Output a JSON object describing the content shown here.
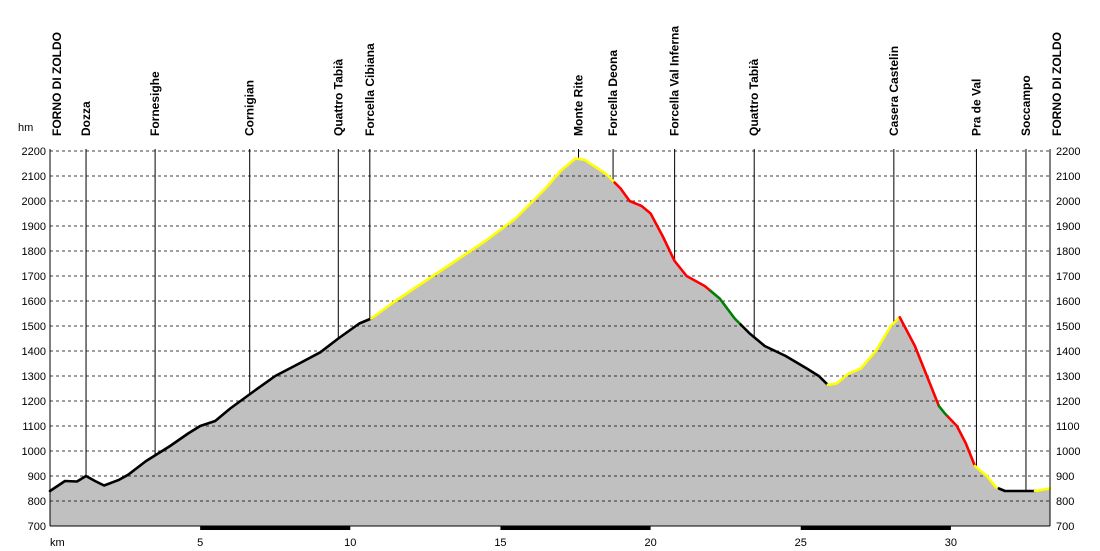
{
  "chart_data": {
    "type": "area",
    "title": "",
    "xlabel": "km",
    "ylabel": "hm",
    "xlim": [
      0,
      33.3
    ],
    "ylim": [
      700,
      2200
    ],
    "y_ticks": [
      700,
      800,
      900,
      1000,
      1100,
      1200,
      1300,
      1400,
      1500,
      1600,
      1700,
      1800,
      1900,
      2000,
      2100,
      2200
    ],
    "x_ticks": [
      5,
      10,
      15,
      20,
      25,
      30
    ],
    "y_grid": true,
    "colors": {
      "fill": "#c0c0c0",
      "grid": "#000000",
      "black": "#000000",
      "yellow": "#ffff00",
      "red": "#ff0000",
      "green": "#008000"
    },
    "profile": [
      [
        0.0,
        840
      ],
      [
        0.5,
        880
      ],
      [
        0.9,
        878
      ],
      [
        1.2,
        900
      ],
      [
        1.5,
        880
      ],
      [
        1.8,
        862
      ],
      [
        2.3,
        885
      ],
      [
        2.6,
        905
      ],
      [
        3.2,
        960
      ],
      [
        4.0,
        1020
      ],
      [
        4.6,
        1070
      ],
      [
        5.0,
        1100
      ],
      [
        5.5,
        1120
      ],
      [
        6.0,
        1170
      ],
      [
        6.8,
        1240
      ],
      [
        7.5,
        1300
      ],
      [
        8.3,
        1350
      ],
      [
        9.0,
        1395
      ],
      [
        9.6,
        1450
      ],
      [
        10.3,
        1510
      ],
      [
        10.7,
        1530
      ],
      [
        11.5,
        1600
      ],
      [
        12.5,
        1680
      ],
      [
        13.5,
        1760
      ],
      [
        14.5,
        1840
      ],
      [
        15.5,
        1930
      ],
      [
        16.5,
        2050
      ],
      [
        17.0,
        2120
      ],
      [
        17.5,
        2170
      ],
      [
        17.8,
        2165
      ],
      [
        18.5,
        2110
      ],
      [
        19.0,
        2050
      ],
      [
        19.3,
        2000
      ],
      [
        19.7,
        1980
      ],
      [
        20.0,
        1950
      ],
      [
        20.4,
        1860
      ],
      [
        20.8,
        1760
      ],
      [
        21.2,
        1700
      ],
      [
        21.8,
        1660
      ],
      [
        22.3,
        1610
      ],
      [
        22.8,
        1530
      ],
      [
        23.3,
        1470
      ],
      [
        23.8,
        1420
      ],
      [
        24.5,
        1380
      ],
      [
        25.2,
        1330
      ],
      [
        25.6,
        1300
      ],
      [
        25.9,
        1265
      ],
      [
        26.2,
        1270
      ],
      [
        26.6,
        1310
      ],
      [
        27.0,
        1330
      ],
      [
        27.5,
        1400
      ],
      [
        28.0,
        1500
      ],
      [
        28.3,
        1535
      ],
      [
        28.8,
        1420
      ],
      [
        29.2,
        1300
      ],
      [
        29.6,
        1180
      ],
      [
        29.8,
        1150
      ],
      [
        30.2,
        1100
      ],
      [
        30.5,
        1030
      ],
      [
        30.8,
        940
      ],
      [
        31.2,
        900
      ],
      [
        31.5,
        855
      ],
      [
        31.8,
        840
      ],
      [
        32.3,
        840
      ],
      [
        32.8,
        840
      ],
      [
        33.3,
        850
      ]
    ],
    "segments": [
      {
        "color": "black",
        "from": 0.0,
        "to": 10.7
      },
      {
        "color": "yellow",
        "from": 10.7,
        "to": 18.8
      },
      {
        "color": "red",
        "from": 18.8,
        "to": 22.0
      },
      {
        "color": "green",
        "from": 22.0,
        "to": 23.0
      },
      {
        "color": "black",
        "from": 23.0,
        "to": 25.9
      },
      {
        "color": "yellow",
        "from": 25.9,
        "to": 28.3
      },
      {
        "color": "red",
        "from": 28.3,
        "to": 29.6
      },
      {
        "color": "green",
        "from": 29.6,
        "to": 29.9
      },
      {
        "color": "red",
        "from": 29.9,
        "to": 30.8
      },
      {
        "color": "yellow",
        "from": 30.8,
        "to": 31.6
      },
      {
        "color": "black",
        "from": 31.6,
        "to": 32.8
      },
      {
        "color": "yellow",
        "from": 32.8,
        "to": 33.3
      }
    ],
    "x_axis_bands": [
      [
        5,
        10
      ],
      [
        15,
        20
      ],
      [
        25,
        30
      ]
    ],
    "waypoints": [
      {
        "label": "FORNO DI ZOLDO",
        "km": 0.0
      },
      {
        "label": "Dozza",
        "km": 1.2
      },
      {
        "label": "Fornesighe",
        "km": 3.5
      },
      {
        "label": "Cornigian",
        "km": 6.65
      },
      {
        "label": "Quattro Tabià",
        "km": 9.6
      },
      {
        "label": "Forcella Cibiana",
        "km": 10.65
      },
      {
        "label": "Monte Rite",
        "km": 17.6
      },
      {
        "label": "Forcella Deona",
        "km": 18.75
      },
      {
        "label": "Forcella Val Inferna",
        "km": 20.8
      },
      {
        "label": "Quattro Tabià",
        "km": 23.45
      },
      {
        "label": "Casera Castelin",
        "km": 28.1
      },
      {
        "label": "Pra de Val",
        "km": 30.85
      },
      {
        "label": "Soccampo",
        "km": 32.5
      },
      {
        "label": "FORNO DI ZOLDO",
        "km": 33.3
      }
    ]
  }
}
